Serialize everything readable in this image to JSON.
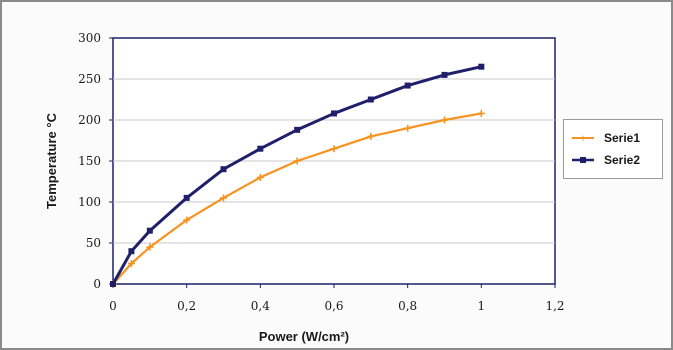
{
  "chart_data": {
    "type": "line",
    "title": "",
    "xlabel": "Power (W/cm²)",
    "ylabel": "Temperature °C",
    "xlim": [
      0,
      1.2
    ],
    "ylim": [
      0,
      300
    ],
    "x_ticks": [
      "0",
      "0,2",
      "0,4",
      "0,6",
      "0,8",
      "1",
      "1,2"
    ],
    "y_ticks": [
      "0",
      "50",
      "100",
      "150",
      "200",
      "250",
      "300"
    ],
    "grid": "horizontal",
    "legend_position": "right",
    "series": [
      {
        "name": "Serie1",
        "color": "#f7931e",
        "marker": "plus",
        "x": [
          0,
          0.05,
          0.1,
          0.2,
          0.3,
          0.4,
          0.5,
          0.6,
          0.7,
          0.8,
          0.9,
          1.0
        ],
        "y": [
          0,
          25,
          45,
          78,
          105,
          130,
          150,
          165,
          180,
          190,
          200,
          208
        ]
      },
      {
        "name": "Serie2",
        "color": "#1f1f6b",
        "marker": "square",
        "x": [
          0,
          0.05,
          0.1,
          0.2,
          0.3,
          0.4,
          0.5,
          0.6,
          0.7,
          0.8,
          0.9,
          1.0
        ],
        "y": [
          0,
          40,
          65,
          105,
          140,
          165,
          188,
          208,
          225,
          242,
          255,
          265
        ]
      }
    ]
  }
}
